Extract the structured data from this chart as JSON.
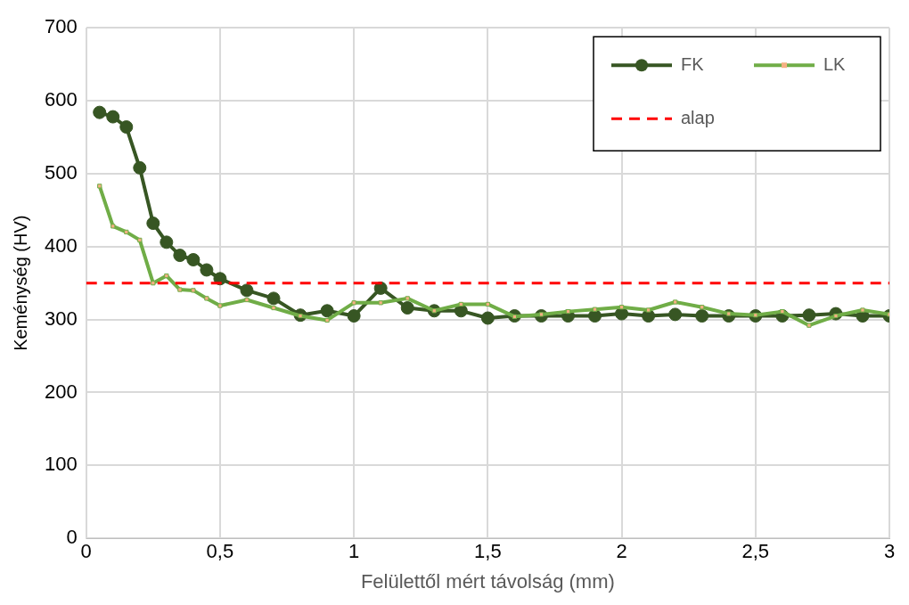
{
  "chart_data": {
    "type": "line",
    "xlabel": "Felülettől mért távolság (mm)",
    "ylabel": "Keménység (HV)",
    "x": [
      0.05,
      0.1,
      0.15,
      0.2,
      0.25,
      0.3,
      0.35,
      0.4,
      0.45,
      0.5,
      0.6,
      0.7,
      0.8,
      0.9,
      1.0,
      1.1,
      1.2,
      1.3,
      1.4,
      1.5,
      1.6,
      1.7,
      1.8,
      1.9,
      2.0,
      2.1,
      2.2,
      2.3,
      2.4,
      2.5,
      2.6,
      2.7,
      2.8,
      2.9,
      3.0
    ],
    "series": [
      {
        "name": "FK",
        "color": "#375623",
        "marker": "circle",
        "values": [
          584,
          578,
          564,
          508,
          432,
          406,
          388,
          382,
          368,
          356,
          340,
          329,
          306,
          312,
          305,
          343,
          316,
          312,
          312,
          302,
          305,
          305,
          305,
          305,
          308,
          305,
          307,
          305,
          305,
          305,
          305,
          306,
          308,
          305,
          305
        ]
      },
      {
        "name": "LK",
        "color": "#70ad47",
        "marker": "square",
        "values": [
          483,
          428,
          420,
          409,
          350,
          360,
          341,
          340,
          329,
          319,
          327,
          316,
          305,
          299,
          323,
          323,
          329,
          312,
          321,
          321,
          304,
          307,
          311,
          314,
          317,
          313,
          324,
          317,
          308,
          306,
          311,
          292,
          305,
          313,
          307
        ]
      }
    ],
    "ref_lines": [
      {
        "axis": "y",
        "value": 350,
        "label": "alap",
        "color": "#ff0000",
        "line_style": "dashed"
      }
    ],
    "xlim": [
      0,
      3
    ],
    "xticks": [
      0,
      {
        "value": 0.5,
        "label": "0,5"
      },
      1,
      {
        "value": 1.5,
        "label": "1,5"
      },
      2,
      {
        "value": 2.5,
        "label": "2,5"
      },
      3
    ],
    "ylim": [
      0,
      700
    ],
    "yticks": [
      0,
      100,
      200,
      300,
      400,
      500,
      600,
      700
    ],
    "grid": true,
    "legend": "top right"
  }
}
